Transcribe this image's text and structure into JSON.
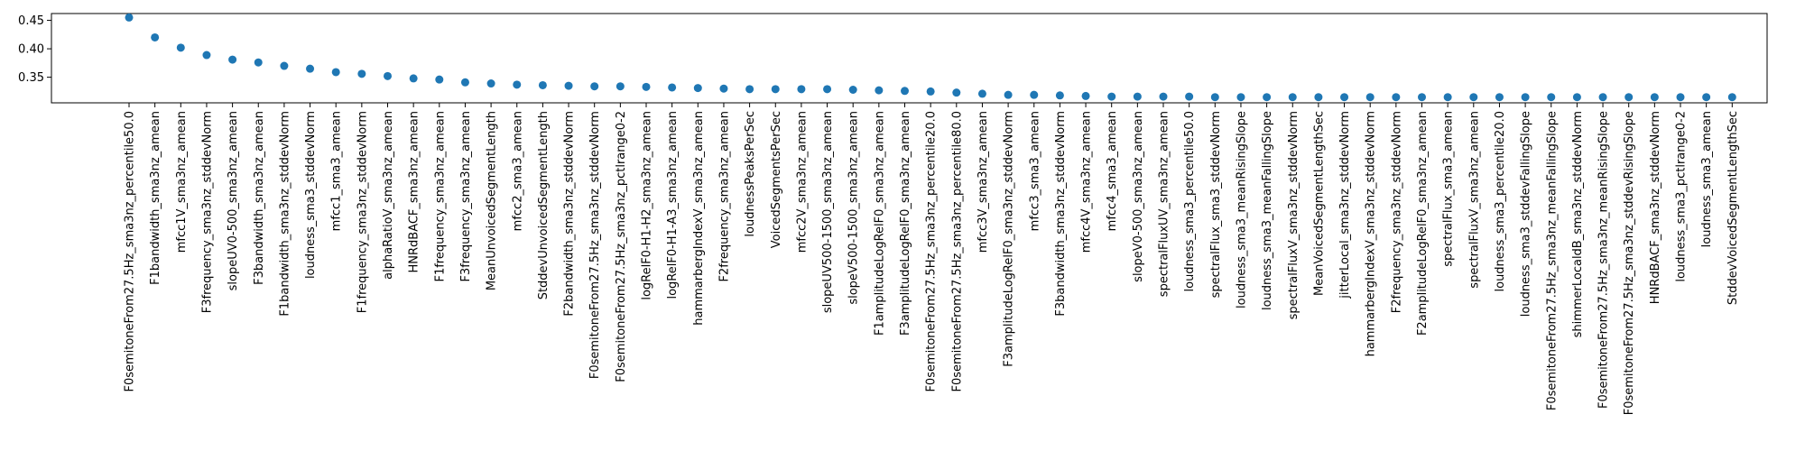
{
  "chart_data": {
    "type": "scatter",
    "title": "",
    "xlabel": "",
    "ylabel": "",
    "ylim": [
      0.305,
      0.462
    ],
    "yticks": [
      0.35,
      0.4,
      0.45
    ],
    "ytick_labels": [
      "0.35",
      "0.40",
      "0.45"
    ],
    "grid": false,
    "marker_color": "#1f77b4",
    "categories": [
      "F0semitoneFrom27.5Hz_sma3nz_percentile50.0",
      "F1bandwidth_sma3nz_amean",
      "mfcc1V_sma3nz_amean",
      "F3frequency_sma3nz_stddevNorm",
      "slopeUV0-500_sma3nz_amean",
      "F3bandwidth_sma3nz_amean",
      "F1bandwidth_sma3nz_stddevNorm",
      "loudness_sma3_stddevNorm",
      "mfcc1_sma3_amean",
      "F1frequency_sma3nz_stddevNorm",
      "alphaRatioV_sma3nz_amean",
      "HNRdBACF_sma3nz_amean",
      "F1frequency_sma3nz_amean",
      "F3frequency_sma3nz_amean",
      "MeanUnvoicedSegmentLength",
      "mfcc2_sma3_amean",
      "StddevUnvoicedSegmentLength",
      "F2bandwidth_sma3nz_stddevNorm",
      "F0semitoneFrom27.5Hz_sma3nz_stddevNorm",
      "F0semitoneFrom27.5Hz_sma3nz_pctlrange0-2",
      "logRelF0-H1-H2_sma3nz_amean",
      "logRelF0-H1-A3_sma3nz_amean",
      "hammarbergIndexV_sma3nz_amean",
      "F2frequency_sma3nz_amean",
      "loudnessPeaksPerSec",
      "VoicedSegmentsPerSec",
      "mfcc2V_sma3nz_amean",
      "slopeUV500-1500_sma3nz_amean",
      "slopeV500-1500_sma3nz_amean",
      "F1amplitudeLogRelF0_sma3nz_amean",
      "F3amplitudeLogRelF0_sma3nz_amean",
      "F0semitoneFrom27.5Hz_sma3nz_percentile20.0",
      "F0semitoneFrom27.5Hz_sma3nz_percentile80.0",
      "mfcc3V_sma3nz_amean",
      "F3amplitudeLogRelF0_sma3nz_stddevNorm",
      "mfcc3_sma3_amean",
      "F3bandwidth_sma3nz_stddevNorm",
      "mfcc4V_sma3nz_amean",
      "mfcc4_sma3_amean",
      "slopeV0-500_sma3nz_amean",
      "spectralFluxUV_sma3nz_amean",
      "loudness_sma3_percentile50.0",
      "spectralFlux_sma3_stddevNorm",
      "loudness_sma3_meanRisingSlope",
      "loudness_sma3_meanFallingSlope",
      "spectralFluxV_sma3nz_stddevNorm",
      "MeanVoicedSegmentLengthSec",
      "jitterLocal_sma3nz_stddevNorm",
      "hammarbergIndexV_sma3nz_stddevNorm",
      "F2frequency_sma3nz_stddevNorm",
      "F2amplitudeLogRelF0_sma3nz_amean",
      "spectralFlux_sma3_amean",
      "spectralFluxV_sma3nz_amean",
      "loudness_sma3_percentile20.0",
      "loudness_sma3_stddevFallingSlope",
      "F0semitoneFrom27.5Hz_sma3nz_meanFallingSlope",
      "shimmerLocaldB_sma3nz_stddevNorm",
      "F0semitoneFrom27.5Hz_sma3nz_meanRisingSlope",
      "F0semitoneFrom27.5Hz_sma3nz_stddevRisingSlope",
      "HNRdBACF_sma3nz_stddevNorm",
      "loudness_sma3_pctlrange0-2",
      "loudness_sma3_amean",
      "StddevVoicedSegmentLengthSec"
    ],
    "values": [
      0.455,
      0.42,
      0.402,
      0.389,
      0.381,
      0.376,
      0.37,
      0.365,
      0.359,
      0.356,
      0.352,
      0.348,
      0.346,
      0.341,
      0.339,
      0.337,
      0.336,
      0.335,
      0.334,
      0.334,
      0.333,
      0.332,
      0.331,
      0.33,
      0.329,
      0.329,
      0.329,
      0.329,
      0.328,
      0.327,
      0.326,
      0.325,
      0.323,
      0.321,
      0.319,
      0.319,
      0.318,
      0.317,
      0.316,
      0.316,
      0.316,
      0.316,
      0.315,
      0.315,
      0.315,
      0.315,
      0.315,
      0.315,
      0.315,
      0.315,
      0.315,
      0.315,
      0.315,
      0.315,
      0.315,
      0.315,
      0.315,
      0.315,
      0.315,
      0.315,
      0.315,
      0.315,
      0.315
    ]
  }
}
